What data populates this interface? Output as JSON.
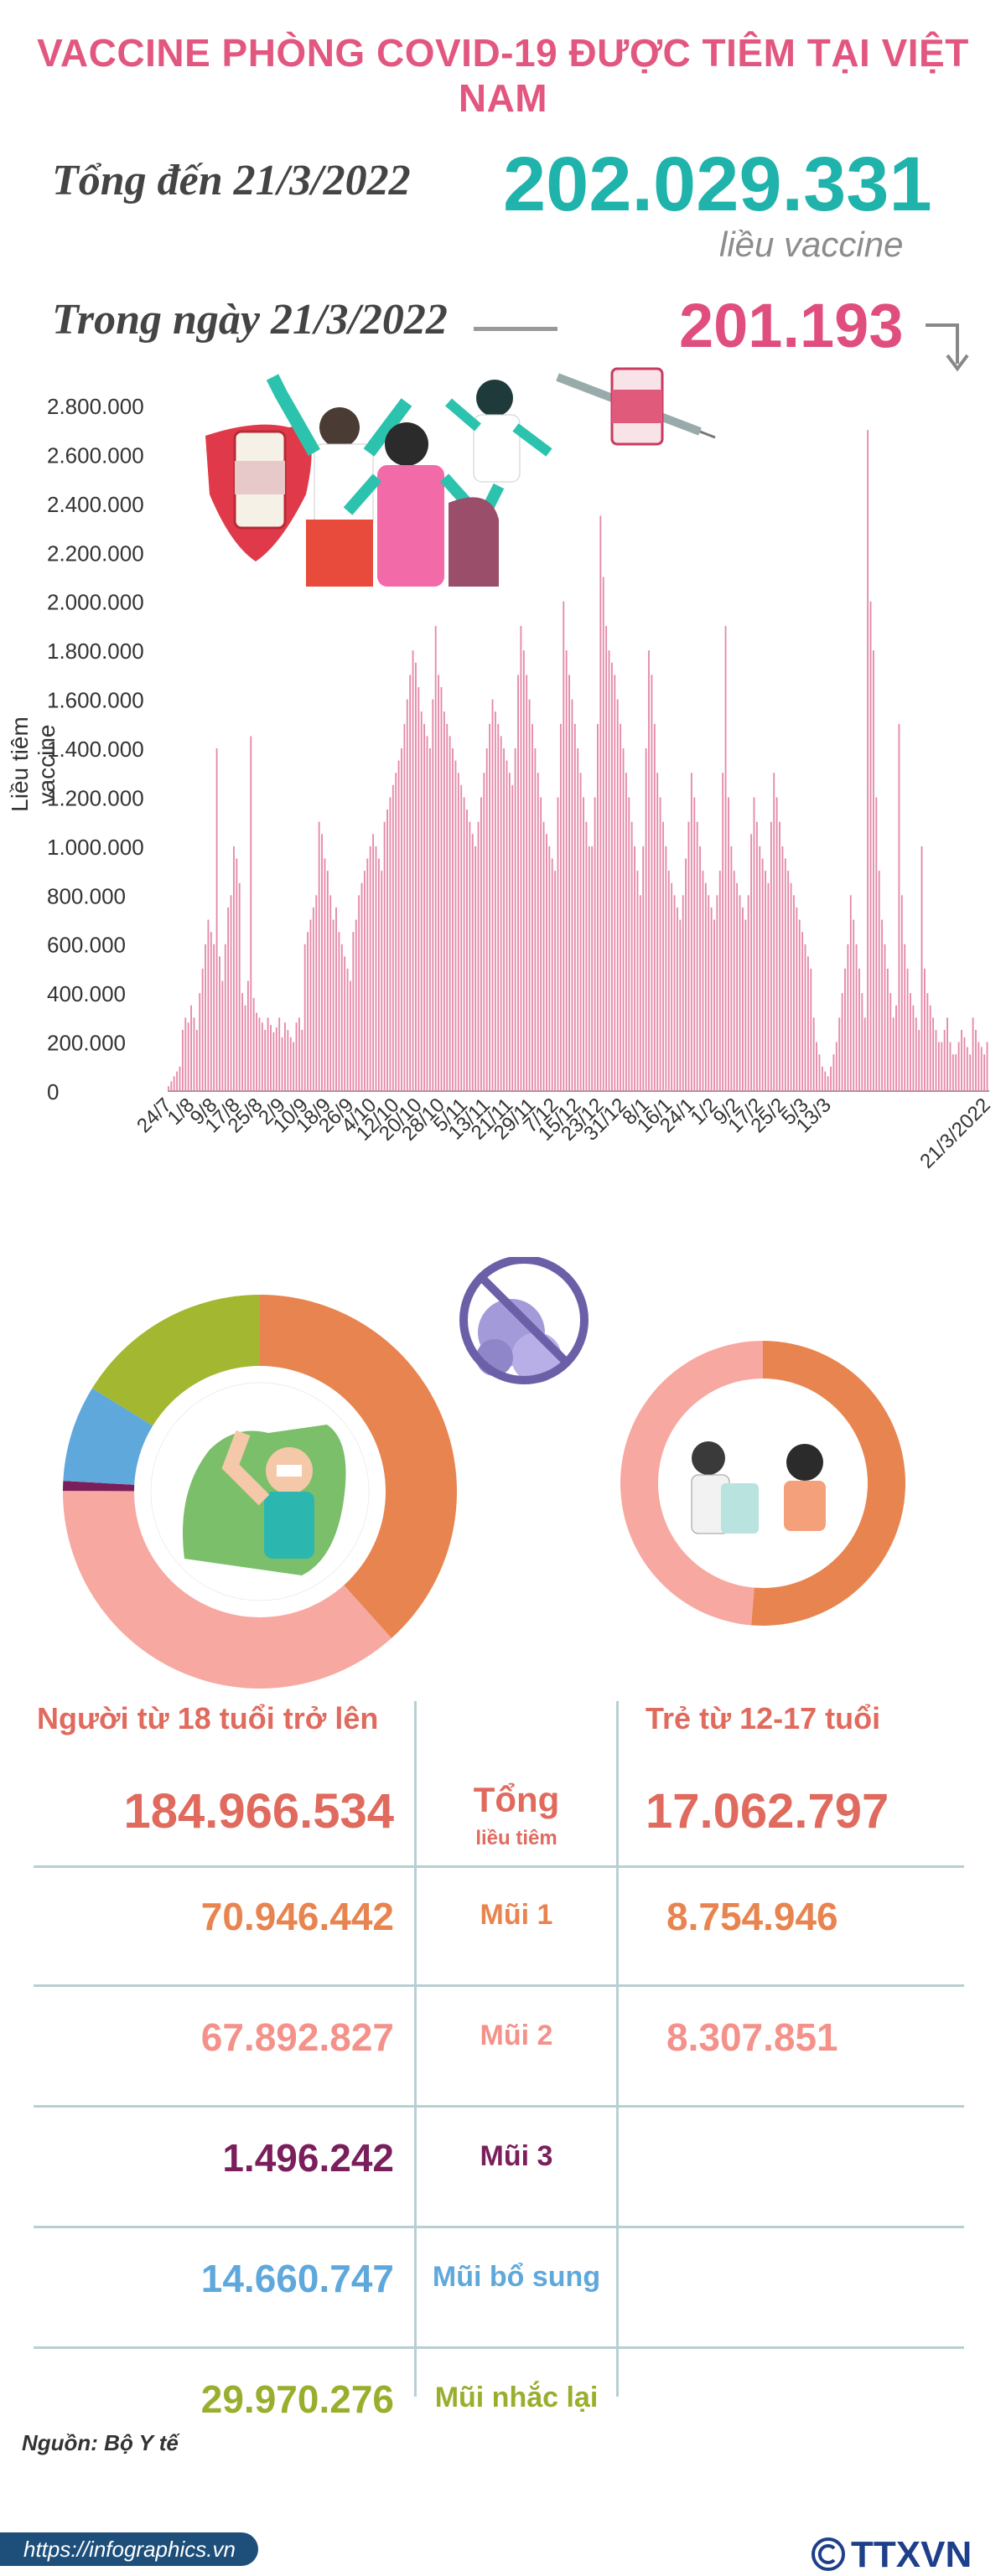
{
  "title": "VACCINE PHÒNG COVID-19 ĐƯỢC TIÊM TẠI VIỆT NAM",
  "summary": {
    "total_label": "Tổng đến 21/3/2022",
    "total_value": "202.029.331",
    "unit": "liều vaccine",
    "day_label": "Trong ngày 21/3/2022",
    "day_value": "201.193"
  },
  "chart_data": {
    "type": "bar",
    "ylabel": "Liều tiêm vaccine",
    "ylim": [
      0,
      2800000
    ],
    "ytick_labels": [
      "0",
      "200.000",
      "400.000",
      "600.000",
      "800.000",
      "1.000.000",
      "1.200.000",
      "1.400.000",
      "1.600.000",
      "1.800.000",
      "2.000.000",
      "2.200.000",
      "2.400.000",
      "2.600.000",
      "2.800.000"
    ],
    "xtick_labels": [
      "24/7",
      "1/8",
      "9/8",
      "17/8",
      "25/8",
      "2/9",
      "10/9",
      "18/9",
      "26/9",
      "4/10",
      "12/10",
      "20/10",
      "28/10",
      "5/11",
      "13/11",
      "21/11",
      "29/11",
      "7/12",
      "15/12",
      "23/12",
      "31/12",
      "8/1",
      "16/1",
      "24/1",
      "1/2",
      "9/2",
      "17/2",
      "25/2",
      "5/3",
      "13/3",
      "21/3/2022"
    ],
    "start_date": "2021-07-24",
    "series": [
      {
        "name": "",
        "values": [
          20000,
          40000,
          60000,
          80000,
          100000,
          250000,
          300000,
          280000,
          350000,
          300000,
          250000,
          400000,
          500000,
          600000,
          700000,
          650000,
          600000,
          1400000,
          550000,
          450000,
          600000,
          750000,
          800000,
          1000000,
          950000,
          850000,
          400000,
          350000,
          450000,
          1450000,
          380000,
          320000,
          300000,
          280000,
          250000,
          300000,
          270000,
          240000,
          260000,
          300000,
          220000,
          280000,
          250000,
          220000,
          200000,
          280000,
          300000,
          250000,
          600000,
          650000,
          700000,
          750000,
          800000,
          1100000,
          1050000,
          950000,
          900000,
          800000,
          700000,
          750000,
          650000,
          600000,
          550000,
          500000,
          450000,
          650000,
          700000,
          800000,
          850000,
          900000,
          950000,
          1000000,
          1050000,
          1000000,
          950000,
          900000,
          1100000,
          1150000,
          1200000,
          1250000,
          1300000,
          1350000,
          1400000,
          1500000,
          1600000,
          1700000,
          1800000,
          1750000,
          1650000,
          1550000,
          1500000,
          1450000,
          1400000,
          1600000,
          1900000,
          1700000,
          1650000,
          1550000,
          1500000,
          1450000,
          1400000,
          1350000,
          1300000,
          1250000,
          1200000,
          1150000,
          1100000,
          1050000,
          1000000,
          1100000,
          1200000,
          1300000,
          1400000,
          1500000,
          1600000,
          1550000,
          1500000,
          1450000,
          1400000,
          1350000,
          1300000,
          1250000,
          1400000,
          1700000,
          1900000,
          1800000,
          1700000,
          1600000,
          1500000,
          1400000,
          1300000,
          1200000,
          1100000,
          1050000,
          1000000,
          950000,
          900000,
          1200000,
          1500000,
          2000000,
          1800000,
          1700000,
          1600000,
          1500000,
          1400000,
          1300000,
          1200000,
          1100000,
          1000000,
          1000000,
          1200000,
          1500000,
          2350000,
          2100000,
          1900000,
          1800000,
          1750000,
          1700000,
          1600000,
          1500000,
          1400000,
          1300000,
          1200000,
          1100000,
          1000000,
          900000,
          800000,
          1000000,
          1400000,
          1800000,
          1700000,
          1500000,
          1300000,
          1200000,
          1100000,
          1000000,
          900000,
          850000,
          800000,
          750000,
          700000,
          800000,
          950000,
          1100000,
          1300000,
          1200000,
          1100000,
          1000000,
          900000,
          850000,
          800000,
          750000,
          700000,
          800000,
          900000,
          1300000,
          1900000,
          1200000,
          1000000,
          900000,
          850000,
          800000,
          750000,
          700000,
          800000,
          1050000,
          1200000,
          1100000,
          1000000,
          950000,
          900000,
          850000,
          1100000,
          1300000,
          1200000,
          1100000,
          1000000,
          950000,
          900000,
          850000,
          800000,
          750000,
          700000,
          650000,
          600000,
          550000,
          500000,
          300000,
          200000,
          150000,
          100000,
          80000,
          60000,
          100000,
          150000,
          200000,
          300000,
          400000,
          500000,
          600000,
          800000,
          700000,
          600000,
          500000,
          400000,
          300000,
          2700000,
          2000000,
          1800000,
          1200000,
          900000,
          700000,
          600000,
          500000,
          400000,
          300000,
          350000,
          1500000,
          800000,
          600000,
          500000,
          400000,
          350000,
          300000,
          250000,
          1000000,
          500000,
          400000,
          350000,
          300000,
          250000,
          200000,
          200000,
          250000,
          300000,
          200000,
          150000,
          150000,
          200000,
          250000,
          220000,
          180000,
          150000,
          300000,
          250000,
          200000,
          180000,
          150000,
          200000
        ]
      }
    ]
  },
  "donuts": {
    "adults": {
      "colors": [
        "#e8844f",
        "#f7a8a0",
        "#7a1f5c",
        "#5fa8dc",
        "#a3b830"
      ],
      "values": [
        70946442,
        67892827,
        1496242,
        14660747,
        29970276
      ]
    },
    "kids": {
      "colors": [
        "#e8844f",
        "#f7a8a0"
      ],
      "values": [
        8754946,
        8307851
      ]
    }
  },
  "table": {
    "col_left": "Người từ 18 tuổi trở lên",
    "col_right": "Trẻ từ 12-17 tuổi",
    "total_label": "Tổng",
    "total_sub": "liều tiêm",
    "total_left": "184.966.534",
    "total_right": "17.062.797",
    "rows": [
      {
        "label": "Mũi 1",
        "left": "70.946.442",
        "right": "8.754.946",
        "color": "#e8844f"
      },
      {
        "label": "Mũi 2",
        "left": "67.892.827",
        "right": "8.307.851",
        "color": "#f4918a"
      },
      {
        "label": "Mũi 3",
        "left": "1.496.242",
        "right": "",
        "color": "#7a1f5c"
      },
      {
        "label": "Mũi bổ sung",
        "left": "14.660.747",
        "right": "",
        "color": "#5fa8dc"
      },
      {
        "label": "Mũi nhắc lại",
        "left": "29.970.276",
        "right": "",
        "color": "#9aae2d"
      }
    ]
  },
  "footer": {
    "source": "Nguồn: Bộ Y tế",
    "url": "https://infographics.vn",
    "logo": "TTXVN"
  },
  "icons": [
    "down-arrow-icon",
    "vaccine-vial-icon",
    "syringe-icon",
    "shield-icon",
    "no-virus-icon",
    "muscle-arm-icon",
    "nurse-vaccinating-child-icon",
    "copyright-icon"
  ]
}
